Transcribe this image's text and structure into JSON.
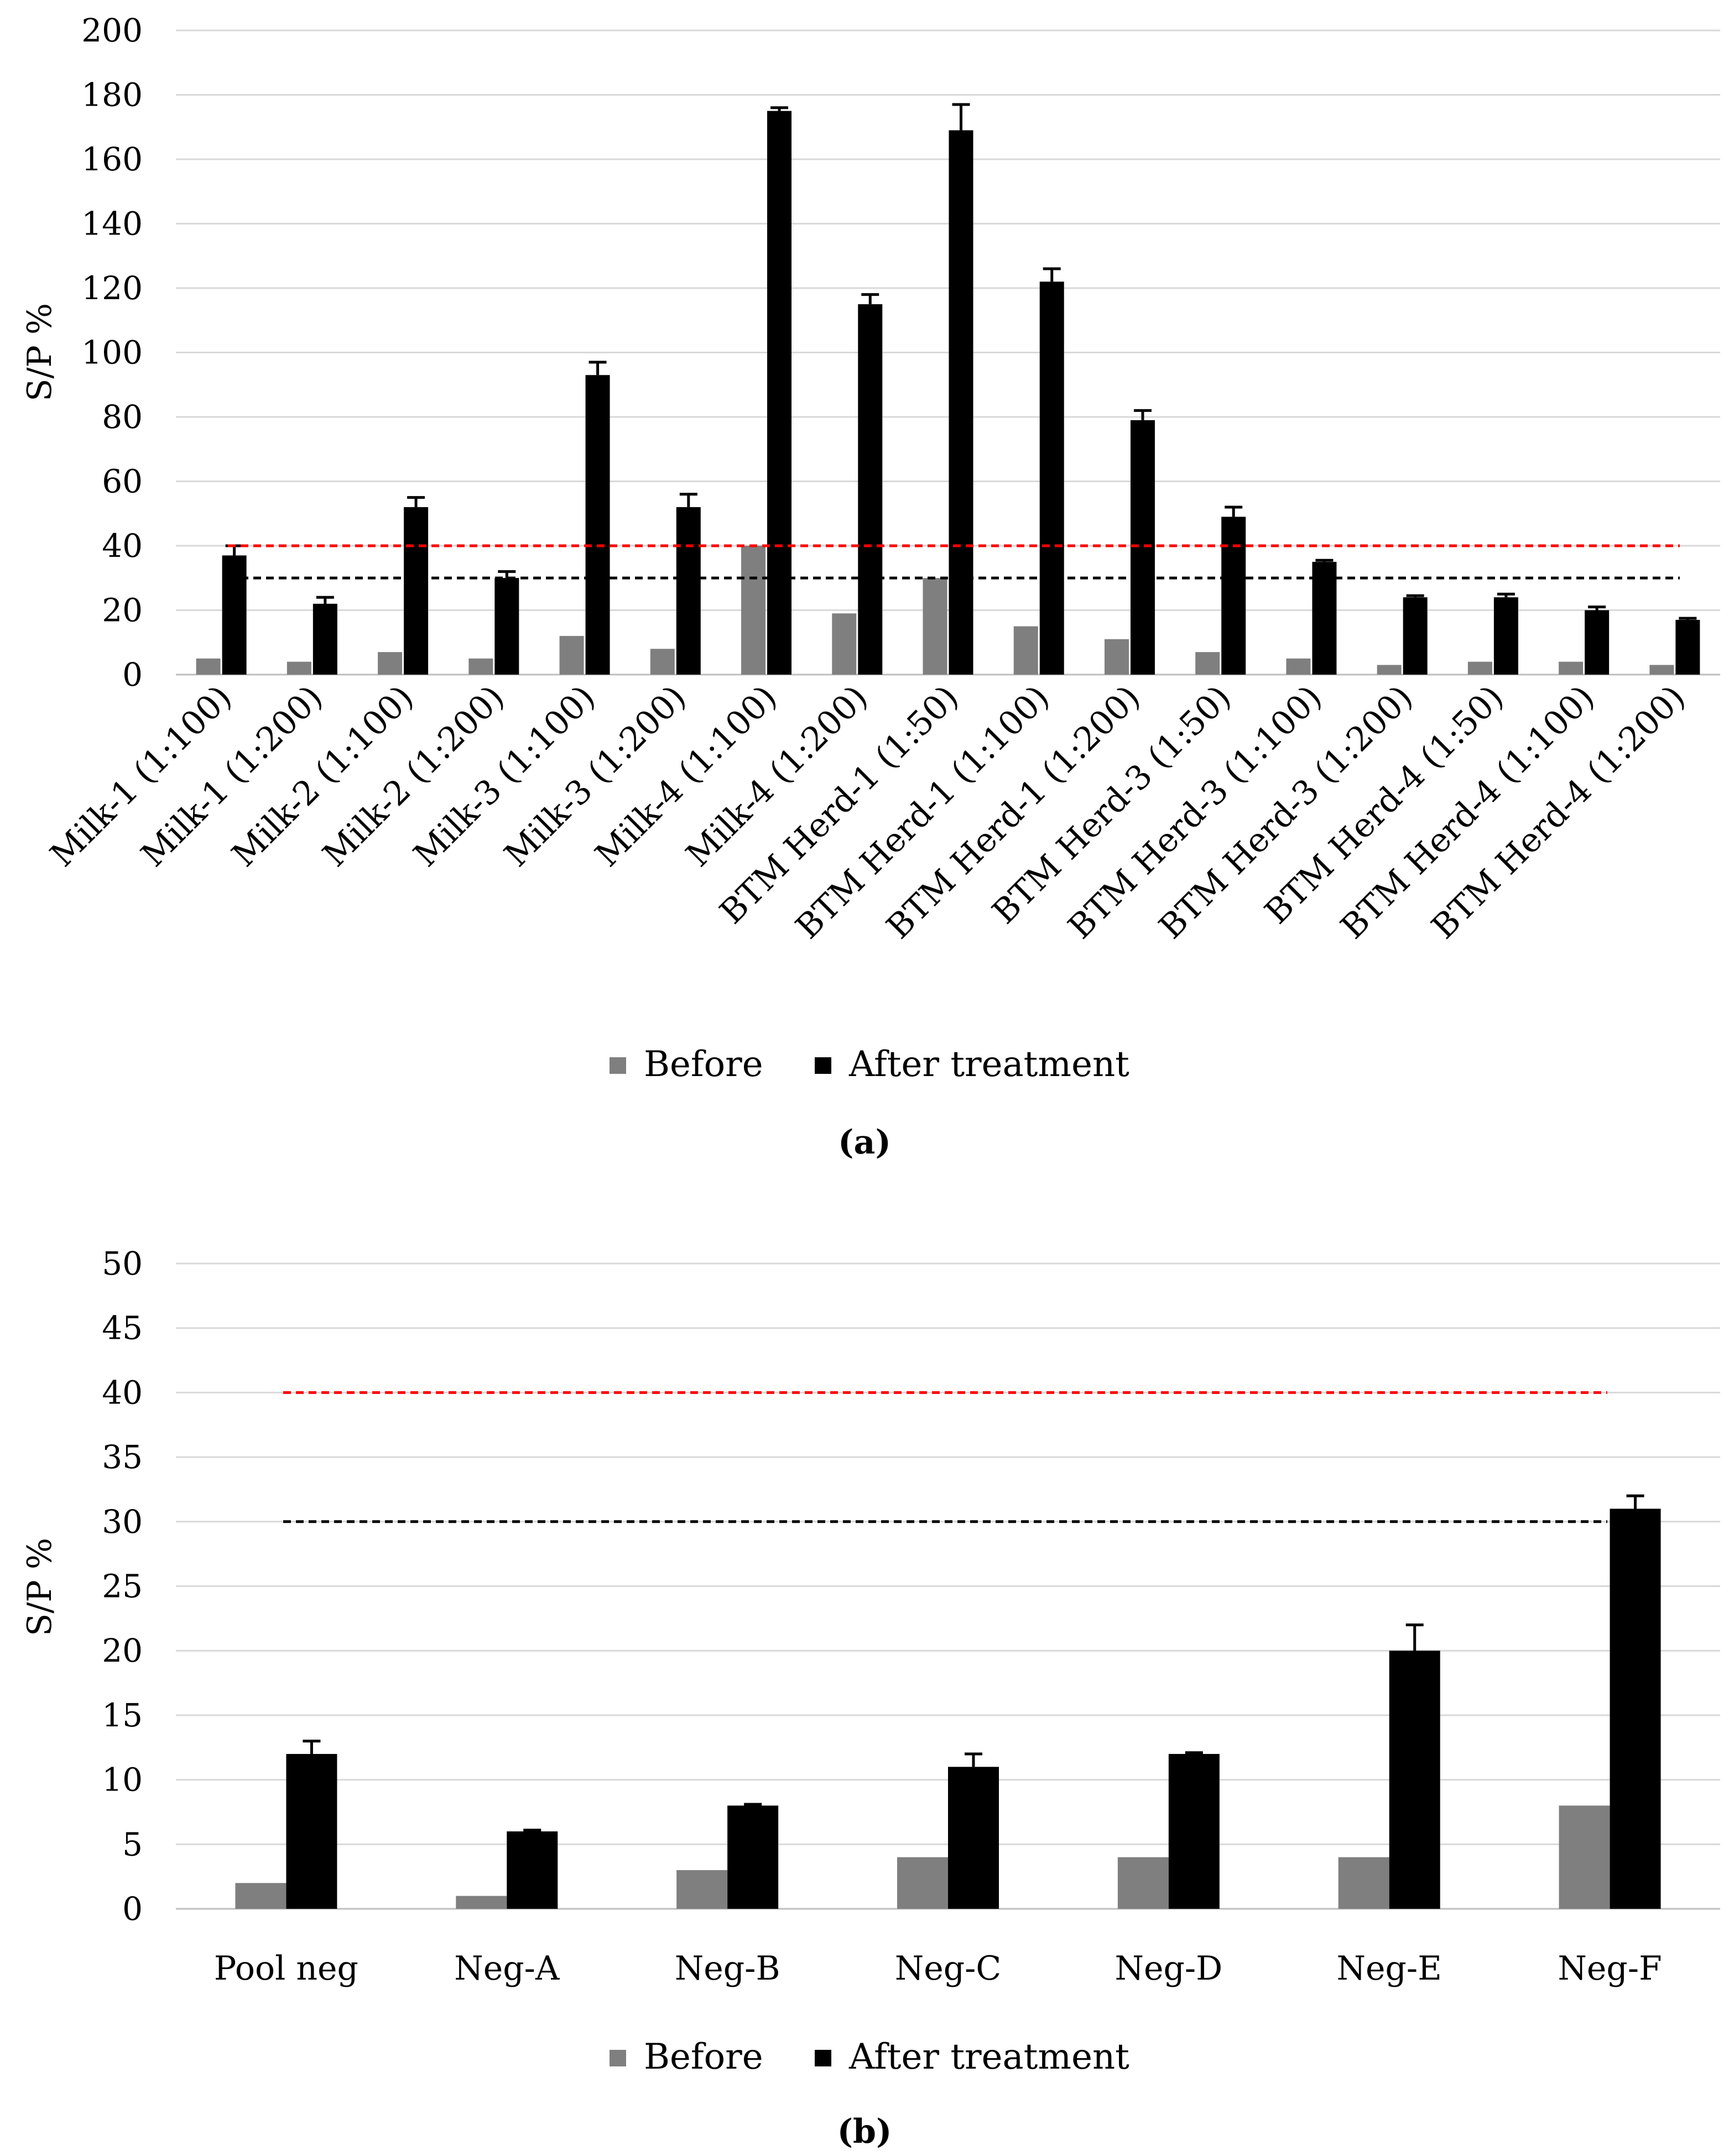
{
  "chart_data": [
    {
      "type": "bar",
      "panel_label": "(a)",
      "ylabel": "S/P %",
      "ylim": [
        0,
        200
      ],
      "yticks": [
        0,
        20,
        40,
        60,
        80,
        100,
        120,
        140,
        160,
        180,
        200
      ],
      "grid": true,
      "xlabel_rotation": -45,
      "categories": [
        "Milk-1 (1:100)",
        "Milk-1 (1:200)",
        "Milk-2 (1:100)",
        "Milk-2 (1:200)",
        "Milk-3 (1:100)",
        "Milk-3 (1:200)",
        "Milk-4 (1:100)",
        "Milk-4 (1:200)",
        "BTM Herd-1 (1:50)",
        "BTM Herd-1 (1:100)",
        "BTM Herd-1 (1:200)",
        "BTM Herd-3 (1:50)",
        "BTM Herd-3 (1:100)",
        "BTM Herd-3 (1:200)",
        "BTM Herd-4 (1:50)",
        "BTM Herd-4 (1:100)",
        "BTM Herd-4 (1:200)"
      ],
      "series": [
        {
          "name": "Before",
          "color": "#7f7f7f",
          "values": [
            5,
            4,
            7,
            5,
            12,
            8,
            40,
            19,
            30,
            15,
            11,
            7,
            5,
            3,
            4,
            4,
            3
          ]
        },
        {
          "name": "After treatment",
          "color": "#000000",
          "values": [
            37,
            22,
            52,
            30,
            93,
            52,
            175,
            115,
            169,
            122,
            79,
            49,
            35,
            24,
            24,
            20,
            17
          ],
          "error": [
            3,
            2,
            3,
            2,
            4,
            4,
            1,
            3,
            8,
            4,
            3,
            3,
            0.5,
            0.5,
            1,
            1,
            0.5
          ]
        }
      ],
      "reference_lines": [
        {
          "value": 40,
          "color": "#ff0000",
          "style": "dashed"
        },
        {
          "value": 30,
          "color": "#000000",
          "style": "dashed"
        }
      ],
      "legend": [
        "Before",
        "After treatment"
      ],
      "legend_position": "bottom"
    },
    {
      "type": "bar",
      "panel_label": "(b)",
      "ylabel": "S/P %",
      "ylim": [
        0,
        50
      ],
      "yticks": [
        0,
        5,
        10,
        15,
        20,
        25,
        30,
        35,
        40,
        45,
        50
      ],
      "grid": true,
      "xlabel_rotation": 0,
      "categories": [
        "Pool neg",
        "Neg-A",
        "Neg-B",
        "Neg-C",
        "Neg-D",
        "Neg-E",
        "Neg-F"
      ],
      "series": [
        {
          "name": "Before",
          "color": "#7f7f7f",
          "values": [
            2,
            1,
            3,
            4,
            4,
            4,
            8
          ]
        },
        {
          "name": "After treatment",
          "color": "#000000",
          "values": [
            12,
            6,
            8,
            11,
            12,
            20,
            31
          ],
          "error": [
            1,
            0.1,
            0.1,
            1,
            0.1,
            2,
            1
          ]
        }
      ],
      "reference_lines": [
        {
          "value": 40,
          "color": "#ff0000",
          "style": "dashed"
        },
        {
          "value": 30,
          "color": "#000000",
          "style": "dashed"
        }
      ],
      "legend": [
        "Before",
        "After treatment"
      ],
      "legend_position": "bottom"
    }
  ]
}
